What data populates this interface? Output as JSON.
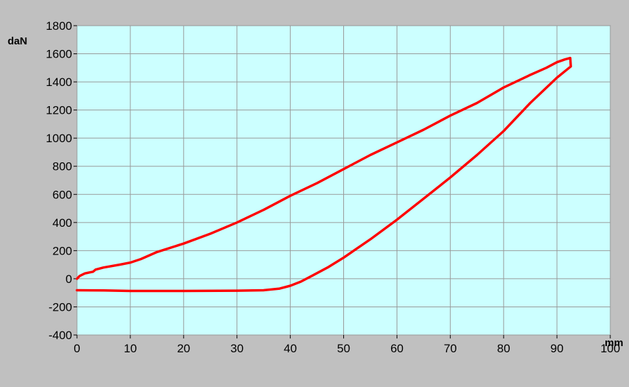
{
  "chart_data": {
    "type": "line",
    "title": "",
    "xlabel": "mm",
    "ylabel": "daN",
    "xlim": [
      0,
      100
    ],
    "ylim": [
      -400,
      1800
    ],
    "x_ticks": [
      0,
      10,
      20,
      30,
      40,
      50,
      60,
      70,
      80,
      90,
      100
    ],
    "y_ticks": [
      -400,
      -200,
      0,
      200,
      400,
      600,
      800,
      1000,
      1200,
      1400,
      1600,
      1800
    ],
    "grid": true,
    "legend": "none",
    "colors": {
      "plot_bg": "#ccffff",
      "line": "#ff0000",
      "grid": "#999999",
      "outer_bg": "#c0c0c0"
    },
    "series": [
      {
        "points": [
          [
            0,
            0
          ],
          [
            0.5,
            20
          ],
          [
            1.5,
            38
          ],
          [
            3,
            50
          ],
          [
            3.5,
            65
          ],
          [
            5,
            80
          ],
          [
            8,
            100
          ],
          [
            10,
            115
          ],
          [
            12,
            140
          ],
          [
            15,
            190
          ],
          [
            20,
            250
          ],
          [
            25,
            320
          ],
          [
            30,
            400
          ],
          [
            35,
            490
          ],
          [
            40,
            590
          ],
          [
            45,
            680
          ],
          [
            50,
            780
          ],
          [
            55,
            880
          ],
          [
            60,
            970
          ],
          [
            65,
            1060
          ],
          [
            70,
            1160
          ],
          [
            75,
            1250
          ],
          [
            80,
            1360
          ],
          [
            85,
            1450
          ],
          [
            88,
            1500
          ],
          [
            90,
            1540
          ],
          [
            91.5,
            1560
          ],
          [
            92.5,
            1570
          ],
          [
            92.6,
            1510
          ],
          [
            90,
            1430
          ],
          [
            85,
            1250
          ],
          [
            80,
            1050
          ],
          [
            75,
            880
          ],
          [
            70,
            720
          ],
          [
            65,
            570
          ],
          [
            60,
            420
          ],
          [
            55,
            280
          ],
          [
            50,
            150
          ],
          [
            47,
            80
          ],
          [
            44,
            20
          ],
          [
            42,
            -20
          ],
          [
            40,
            -50
          ],
          [
            38,
            -70
          ],
          [
            35,
            -82
          ],
          [
            30,
            -85
          ],
          [
            20,
            -87
          ],
          [
            10,
            -87
          ],
          [
            5,
            -83
          ],
          [
            0,
            -82
          ]
        ]
      }
    ]
  }
}
